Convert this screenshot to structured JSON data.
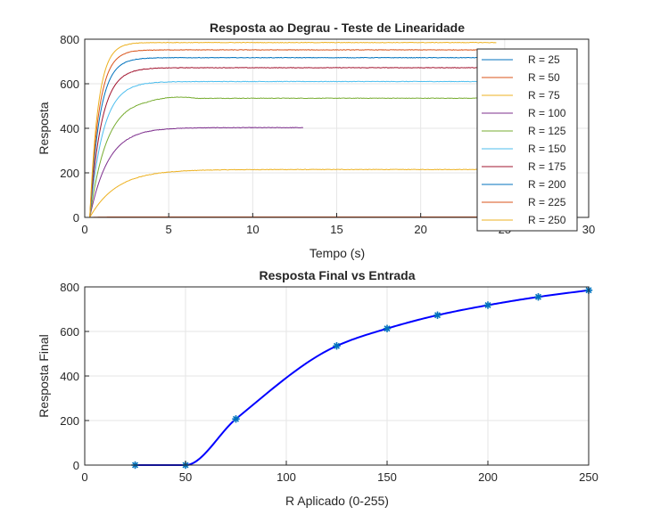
{
  "chart_data": [
    {
      "type": "line",
      "title": "Resposta ao Degrau - Teste de Linearidade",
      "xlabel": "Tempo (s)",
      "ylabel": "Resposta",
      "xlim": [
        0,
        30
      ],
      "ylim": [
        0,
        800
      ],
      "xticks": [
        "0",
        "5",
        "10",
        "15",
        "20",
        "25",
        "30"
      ],
      "yticks": [
        "0",
        "200",
        "400",
        "600",
        "800"
      ],
      "grid": true,
      "legend_position": "top-right",
      "series": [
        {
          "name": "R = 25",
          "color": "#0072BD",
          "final": 0,
          "tau": 0.5,
          "t_end": 24.5
        },
        {
          "name": "R = 50",
          "color": "#D95319",
          "final": 2,
          "tau": 0.5,
          "t_end": 24.5
        },
        {
          "name": "R = 75",
          "color": "#EDB120",
          "final": 215,
          "tau": 1.6,
          "t_end": 24.5
        },
        {
          "name": "R = 100",
          "color": "#7E2F8E",
          "final": 403,
          "tau": 1.1,
          "t_end": 13.0
        },
        {
          "name": "R = 125",
          "color": "#77AC30",
          "final": 535,
          "tau": 1.0,
          "t_end": 24.5
        },
        {
          "name": "R = 150",
          "color": "#4DBEEE",
          "final": 610,
          "tau": 0.8,
          "t_end": 24.5
        },
        {
          "name": "R = 175",
          "color": "#A2142F",
          "final": 672,
          "tau": 0.7,
          "t_end": 24.5
        },
        {
          "name": "R = 200",
          "color": "#0072BD",
          "final": 717,
          "tau": 0.6,
          "t_end": 24.5
        },
        {
          "name": "R = 225",
          "color": "#D95319",
          "final": 752,
          "tau": 0.55,
          "t_end": 24.5
        },
        {
          "name": "R = 250",
          "color": "#EDB120",
          "final": 785,
          "tau": 0.5,
          "t_end": 24.5
        }
      ]
    },
    {
      "type": "line",
      "title": "Resposta Final vs Entrada",
      "xlabel": "R Aplicado (0-255)",
      "ylabel": "Resposta Final",
      "xlim": [
        0,
        250
      ],
      "ylim": [
        0,
        800
      ],
      "xticks": [
        "0",
        "50",
        "100",
        "150",
        "200",
        "250"
      ],
      "yticks": [
        "0",
        "200",
        "400",
        "600",
        "800"
      ],
      "grid": true,
      "line_color": "#0000FF",
      "marker_color": "#0072BD",
      "x": [
        25,
        50,
        75,
        125,
        150,
        175,
        200,
        225,
        250
      ],
      "y": [
        0,
        0,
        207,
        535,
        613,
        673,
        718,
        755,
        785
      ]
    }
  ]
}
